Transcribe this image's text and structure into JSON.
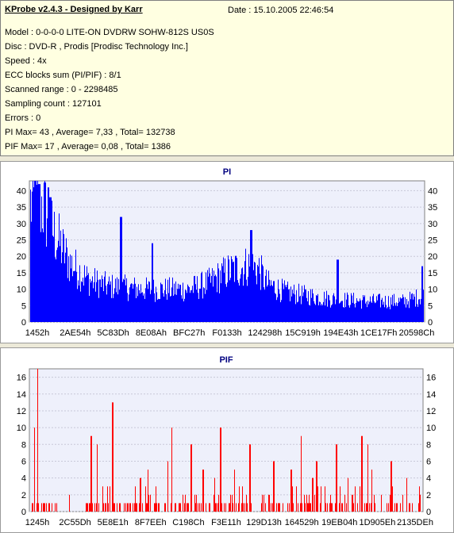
{
  "info": {
    "app_title": "KProbe v2.4.3 - Designed by Karr",
    "date_label": "Date : 15.10.2005 22:46:54",
    "lines": [
      "Model : 0-0-0-0 LITE-ON DVDRW SOHW-812S  US0S",
      "Disc : DVD-R , Prodis [Prodisc Technology Inc.]",
      "Speed : 4x",
      "ECC blocks sum (PI/PIF) : 8/1",
      "Scanned range : 0 - 2298485",
      "Sampling count : 127101",
      "Errors : 0",
      "PI Max= 43 , Average= 7,33 , Total= 132738",
      "PIF Max= 17 , Average= 0,08 , Total= 1386"
    ]
  },
  "colors": {
    "pi": "#0000ff",
    "pif": "#ff0000",
    "plot_bg": "#eef0fb",
    "title": "#000080"
  },
  "chart_data": [
    {
      "type": "bar",
      "title": "PI",
      "ylim": [
        0,
        43
      ],
      "yticks": [
        0,
        5,
        10,
        15,
        20,
        25,
        30,
        35,
        40
      ],
      "xtick_labels": [
        "1452h",
        "2AE54h",
        "5C83Dh",
        "8E08Ah",
        "BFC27h",
        "F0133h",
        "124298h",
        "15C919h",
        "194E43h",
        "1CE17Fh",
        "20598Ch"
      ],
      "grid": true,
      "profile": [
        [
          0,
          40
        ],
        [
          0.03,
          40
        ],
        [
          0.06,
          30
        ],
        [
          0.1,
          20
        ],
        [
          0.15,
          14
        ],
        [
          0.2,
          12
        ],
        [
          0.3,
          11
        ],
        [
          0.4,
          11
        ],
        [
          0.45,
          13
        ],
        [
          0.5,
          17
        ],
        [
          0.55,
          19
        ],
        [
          0.58,
          18
        ],
        [
          0.6,
          13
        ],
        [
          0.65,
          10
        ],
        [
          0.75,
          8
        ],
        [
          0.85,
          7
        ],
        [
          0.95,
          7
        ],
        [
          1,
          9
        ]
      ],
      "spikes": [
        {
          "x": 0.011,
          "y": 43
        },
        {
          "x": 0.022,
          "y": 42
        },
        {
          "x": 0.045,
          "y": 41
        },
        {
          "x": 0.23,
          "y": 32
        },
        {
          "x": 0.31,
          "y": 24
        },
        {
          "x": 0.56,
          "y": 28
        },
        {
          "x": 0.05,
          "y": 38
        },
        {
          "x": 0.78,
          "y": 19
        },
        {
          "x": 0.995,
          "y": 17
        }
      ]
    },
    {
      "type": "bar",
      "title": "PIF",
      "ylim": [
        0,
        17
      ],
      "yticks": [
        0,
        2,
        4,
        6,
        8,
        10,
        12,
        14,
        16
      ],
      "xtick_labels": [
        "1245h",
        "2C55Dh",
        "5E8E1h",
        "8F7EEh",
        "C198Ch",
        "F3E11h",
        "129D13h",
        "164529h",
        "19EB04h",
        "1D905Eh",
        "2135DEh"
      ],
      "grid": true,
      "spikes": [
        {
          "x": 0.018,
          "y": 17
        },
        {
          "x": 0.01,
          "y": 10
        },
        {
          "x": 0.21,
          "y": 13
        },
        {
          "x": 0.155,
          "y": 9
        },
        {
          "x": 0.36,
          "y": 10
        },
        {
          "x": 0.485,
          "y": 10
        },
        {
          "x": 0.69,
          "y": 9
        },
        {
          "x": 0.845,
          "y": 9
        },
        {
          "x": 0.17,
          "y": 8
        },
        {
          "x": 0.41,
          "y": 8
        },
        {
          "x": 0.56,
          "y": 8
        },
        {
          "x": 0.78,
          "y": 8
        },
        {
          "x": 0.86,
          "y": 8
        },
        {
          "x": 0.62,
          "y": 6
        },
        {
          "x": 0.92,
          "y": 6
        },
        {
          "x": 0.3,
          "y": 5
        },
        {
          "x": 0.35,
          "y": 6
        },
        {
          "x": 0.44,
          "y": 5
        },
        {
          "x": 0.52,
          "y": 5
        },
        {
          "x": 0.665,
          "y": 5
        },
        {
          "x": 0.73,
          "y": 6
        },
        {
          "x": 0.87,
          "y": 5
        },
        {
          "x": 0.28,
          "y": 4
        },
        {
          "x": 0.47,
          "y": 4
        },
        {
          "x": 0.72,
          "y": 4
        },
        {
          "x": 0.81,
          "y": 4
        },
        {
          "x": 0.96,
          "y": 4
        }
      ],
      "base_level": 1
    }
  ]
}
